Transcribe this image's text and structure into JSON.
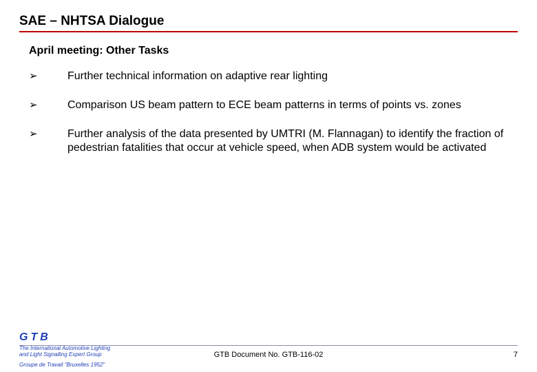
{
  "colors": {
    "title_underline": "#c00000",
    "footer_divider": "#8a8ab5",
    "logo_color": "#1f3fb5",
    "tagline_color": "#1f3fb5"
  },
  "title": "SAE – NHTSA Dialogue",
  "subtitle": "April meeting: Other Tasks",
  "bullets": [
    {
      "marker": "➢",
      "text": "Further technical information on adaptive rear lighting"
    },
    {
      "marker": "➢",
      "text": "Comparison US beam pattern to ECE beam patterns in terms of points vs. zones"
    },
    {
      "marker": "➢",
      "text": "Further analysis of the data presented by UMTRI (M. Flannagan) to identify the fraction of pedestrian fatalities that occur at vehicle speed, when ADB system would be activated"
    }
  ],
  "footer": {
    "logo": "GTB",
    "tagline1_line1": "The International Automotive Lighting",
    "tagline1_line2": "and Light Signalling Expert Group",
    "tagline2": "Groupe de Travail \"Bruxelles 1952\"",
    "docnum": "GTB Document No. GTB-116-02",
    "page": "7"
  }
}
